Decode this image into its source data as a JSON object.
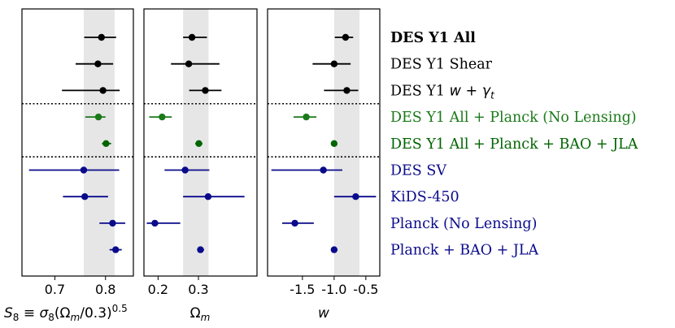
{
  "chart_data": {
    "type": "scatter",
    "description_type": "errorbar-forest",
    "band_color": "#e6e6e6",
    "separator_after_rows": [
      2,
      4
    ],
    "rows": [
      {
        "name": "DES Y1 All",
        "bold": true,
        "color": "#000000"
      },
      {
        "name": "DES Y1 Shear",
        "bold": false,
        "color": "#000000"
      },
      {
        "name": "DES Y1 $w+\\gamma_t$",
        "display": "DES Y1 w + γt",
        "bold": false,
        "color": "#000000"
      },
      {
        "name": "DES Y1 All + Planck (No Lensing)",
        "bold": false,
        "color": "#1a7a1a"
      },
      {
        "name": "DES Y1 All + Planck + BAO + JLA",
        "bold": false,
        "color": "#006400"
      },
      {
        "name": "DES SV",
        "bold": false,
        "color": "#0a0a8c"
      },
      {
        "name": "KiDS-450",
        "bold": false,
        "color": "#0a0a8c"
      },
      {
        "name": "Planck (No Lensing)",
        "bold": false,
        "color": "#0a0a8c"
      },
      {
        "name": "Planck + BAO + JLA",
        "bold": false,
        "color": "#0a0a8c"
      }
    ],
    "panels": [
      {
        "xlabel": "S8 ≡ σ8(Ωm/0.3)0.5",
        "xlim": [
          0.635,
          0.855
        ],
        "xticks": [
          0.7,
          0.8
        ],
        "xtick_labels": [
          "0.7",
          "0.8"
        ],
        "band": [
          0.757,
          0.818
        ],
        "points": [
          {
            "x": 0.792,
            "lo": 0.758,
            "hi": 0.821
          },
          {
            "x": 0.785,
            "lo": 0.741,
            "hi": 0.815
          },
          {
            "x": 0.795,
            "lo": 0.714,
            "hi": 0.828
          },
          {
            "x": 0.786,
            "lo": 0.76,
            "hi": 0.8
          },
          {
            "x": 0.801,
            "lo": 0.793,
            "hi": 0.811
          },
          {
            "x": 0.757,
            "lo": 0.649,
            "hi": 0.827
          },
          {
            "x": 0.759,
            "lo": 0.716,
            "hi": 0.805
          },
          {
            "x": 0.814,
            "lo": 0.788,
            "hi": 0.839
          },
          {
            "x": 0.82,
            "lo": 0.808,
            "hi": 0.832
          }
        ]
      },
      {
        "xlabel": "Ωm",
        "xlim": [
          0.165,
          0.445
        ],
        "xticks": [
          0.2,
          0.3
        ],
        "xtick_labels": [
          "0.2",
          "0.3"
        ],
        "band": [
          0.262,
          0.325
        ],
        "points": [
          {
            "x": 0.284,
            "lo": 0.262,
            "hi": 0.321
          },
          {
            "x": 0.276,
            "lo": 0.232,
            "hi": 0.352
          },
          {
            "x": 0.317,
            "lo": 0.277,
            "hi": 0.357
          },
          {
            "x": 0.21,
            "lo": 0.178,
            "hi": 0.234
          },
          {
            "x": 0.301,
            "lo": 0.292,
            "hi": 0.31
          },
          {
            "x": 0.267,
            "lo": 0.216,
            "hi": 0.327
          },
          {
            "x": 0.324,
            "lo": 0.262,
            "hi": 0.414
          },
          {
            "x": 0.192,
            "lo": 0.172,
            "hi": 0.255
          },
          {
            "x": 0.305,
            "lo": 0.297,
            "hi": 0.314
          }
        ]
      },
      {
        "xlabel": "w",
        "xlim": [
          -2.05,
          -0.28
        ],
        "xticks": [
          -1.5,
          -1.0,
          -0.5
        ],
        "xtick_labels": [
          "-1.5",
          "-1.0",
          "-0.5"
        ],
        "band": [
          -1.0,
          -0.6
        ],
        "points": [
          {
            "x": -0.82,
            "lo": -0.99,
            "hi": -0.7
          },
          {
            "x": -1.0,
            "lo": -1.34,
            "hi": -0.74
          },
          {
            "x": -0.8,
            "lo": -1.16,
            "hi": -0.62
          },
          {
            "x": -1.44,
            "lo": -1.64,
            "hi": -1.28
          },
          {
            "x": -1.0,
            "lo": -1.0,
            "hi": -1.0
          },
          {
            "x": -1.17,
            "lo": -1.99,
            "hi": -0.87
          },
          {
            "x": -0.66,
            "lo": -1.0,
            "hi": -0.34
          },
          {
            "x": -1.62,
            "lo": -1.82,
            "hi": -1.32
          },
          {
            "x": -1.0,
            "lo": -1.0,
            "hi": -1.0
          }
        ]
      }
    ]
  }
}
